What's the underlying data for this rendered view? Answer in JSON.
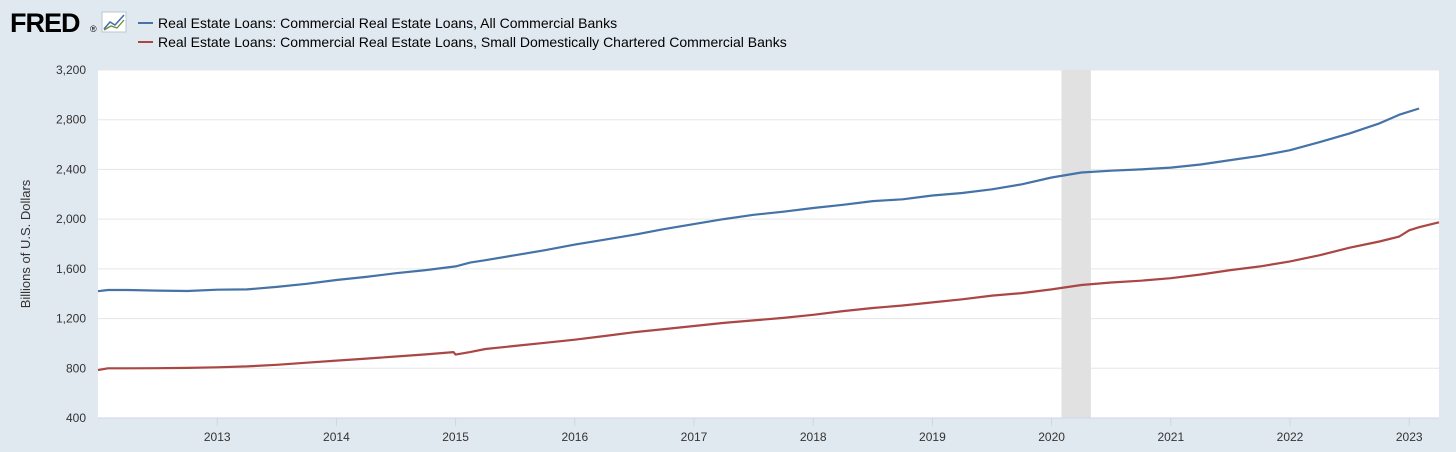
{
  "brand": {
    "logo_text": "FRED",
    "logo_mark": "®"
  },
  "colors": {
    "background": "#e1e9f0",
    "plot_background": "#ffffff",
    "grid": "#e6e6e6",
    "recession": "#e1e1e1",
    "series_1": "#4572a7",
    "series_2": "#aa4643"
  },
  "chart_data": {
    "type": "line",
    "ylabel": "Billions of U.S. Dollars",
    "xlim": [
      "2012-01-01",
      "2023-04-01"
    ],
    "ylim": [
      400,
      3200
    ],
    "yticks": [
      400,
      800,
      1200,
      1600,
      2000,
      2400,
      2800,
      3200
    ],
    "ytick_labels": [
      "400",
      "800",
      "1,200",
      "1,600",
      "2,000",
      "2,400",
      "2,800",
      "3,200"
    ],
    "xticks": [
      "2013",
      "2014",
      "2015",
      "2016",
      "2017",
      "2018",
      "2019",
      "2020",
      "2021",
      "2022",
      "2023"
    ],
    "grid": true,
    "legend_placement": "top-left",
    "recession_shading": [
      {
        "start": "2020-02-01",
        "end": "2020-04-30"
      }
    ],
    "series": [
      {
        "name": "Real Estate Loans: Commercial Real Estate Loans, All Commercial Banks",
        "color": "#4572a7",
        "x": [
          "2012-01-01",
          "2012-02-01",
          "2012-04-01",
          "2012-07-01",
          "2012-10-01",
          "2013-01-01",
          "2013-04-01",
          "2013-07-01",
          "2013-10-01",
          "2014-01-01",
          "2014-04-01",
          "2014-07-01",
          "2014-10-01",
          "2015-01-01",
          "2015-02-15",
          "2015-04-01",
          "2015-07-01",
          "2015-10-01",
          "2016-01-01",
          "2016-04-01",
          "2016-07-01",
          "2016-10-01",
          "2017-01-01",
          "2017-04-01",
          "2017-07-01",
          "2017-10-01",
          "2018-01-01",
          "2018-04-01",
          "2018-07-01",
          "2018-10-01",
          "2019-01-01",
          "2019-04-01",
          "2019-07-01",
          "2019-10-01",
          "2020-01-01",
          "2020-04-01",
          "2020-07-01",
          "2020-10-01",
          "2021-01-01",
          "2021-04-01",
          "2021-07-01",
          "2021-10-01",
          "2022-01-01",
          "2022-04-01",
          "2022-07-01",
          "2022-10-01",
          "2022-12-01",
          "2023-02-01"
        ],
        "values": [
          1420,
          1430,
          1430,
          1425,
          1422,
          1432,
          1435,
          1455,
          1480,
          1510,
          1535,
          1565,
          1590,
          1620,
          1650,
          1670,
          1710,
          1750,
          1795,
          1835,
          1875,
          1920,
          1960,
          2000,
          2035,
          2060,
          2090,
          2115,
          2145,
          2160,
          2190,
          2210,
          2240,
          2280,
          2335,
          2375,
          2390,
          2400,
          2415,
          2440,
          2475,
          2510,
          2555,
          2620,
          2690,
          2770,
          2840,
          2890
        ]
      },
      {
        "name": "Real Estate Loans: Commercial Real Estate Loans, Small Domestically Chartered Commercial Banks",
        "color": "#aa4643",
        "x": [
          "2012-01-01",
          "2012-02-01",
          "2012-04-01",
          "2012-07-01",
          "2012-10-01",
          "2013-01-01",
          "2013-04-01",
          "2013-07-01",
          "2013-10-01",
          "2014-01-01",
          "2014-04-01",
          "2014-07-01",
          "2014-10-01",
          "2014-12-25",
          "2015-01-01",
          "2015-02-15",
          "2015-04-01",
          "2015-07-01",
          "2015-10-01",
          "2016-01-01",
          "2016-04-01",
          "2016-07-01",
          "2016-10-01",
          "2017-01-01",
          "2017-04-01",
          "2017-07-01",
          "2017-10-01",
          "2018-01-01",
          "2018-04-01",
          "2018-07-01",
          "2018-10-01",
          "2019-01-01",
          "2019-04-01",
          "2019-07-01",
          "2019-10-01",
          "2020-01-01",
          "2020-04-01",
          "2020-07-01",
          "2020-10-01",
          "2021-01-01",
          "2021-04-01",
          "2021-07-01",
          "2021-10-01",
          "2022-01-01",
          "2022-04-01",
          "2022-07-01",
          "2022-10-01",
          "2022-12-01",
          "2023-01-01",
          "2023-02-01",
          "2023-04-01"
        ],
        "values": [
          785,
          800,
          800,
          801,
          803,
          808,
          815,
          828,
          845,
          862,
          878,
          895,
          912,
          930,
          910,
          930,
          955,
          980,
          1005,
          1030,
          1060,
          1090,
          1115,
          1140,
          1165,
          1185,
          1205,
          1230,
          1260,
          1285,
          1305,
          1330,
          1355,
          1385,
          1405,
          1435,
          1470,
          1490,
          1505,
          1525,
          1555,
          1590,
          1620,
          1660,
          1710,
          1770,
          1820,
          1860,
          1910,
          1935,
          1975
        ]
      }
    ]
  }
}
